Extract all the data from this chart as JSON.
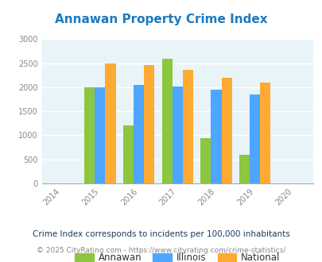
{
  "title": "Annawan Property Crime Index",
  "years": [
    2015,
    2016,
    2017,
    2018,
    2019
  ],
  "annawan": [
    2000,
    1200,
    2600,
    950,
    600
  ],
  "illinois": [
    2000,
    2050,
    2020,
    1950,
    1850
  ],
  "national": [
    2500,
    2470,
    2360,
    2200,
    2100
  ],
  "annawan_color": "#8dc63f",
  "illinois_color": "#4da6ff",
  "national_color": "#ffaa33",
  "title_color": "#1a7abf",
  "bg_color": "#e8f4f8",
  "xlim": [
    2013.5,
    2020.5
  ],
  "ylim": [
    0,
    3000
  ],
  "yticks": [
    0,
    500,
    1000,
    1500,
    2000,
    2500,
    3000
  ],
  "xticks": [
    2014,
    2015,
    2016,
    2017,
    2018,
    2019,
    2020
  ],
  "bar_width": 0.27,
  "legend_labels": [
    "Annawan",
    "Illinois",
    "National"
  ],
  "footnote1": "Crime Index corresponds to incidents per 100,000 inhabitants",
  "footnote2": "© 2025 CityRating.com - https://www.cityrating.com/crime-statistics/",
  "grid_color": "#ffffff",
  "tick_label_color": "#888888",
  "footnote1_color": "#1a3a5c",
  "footnote2_color": "#888888"
}
